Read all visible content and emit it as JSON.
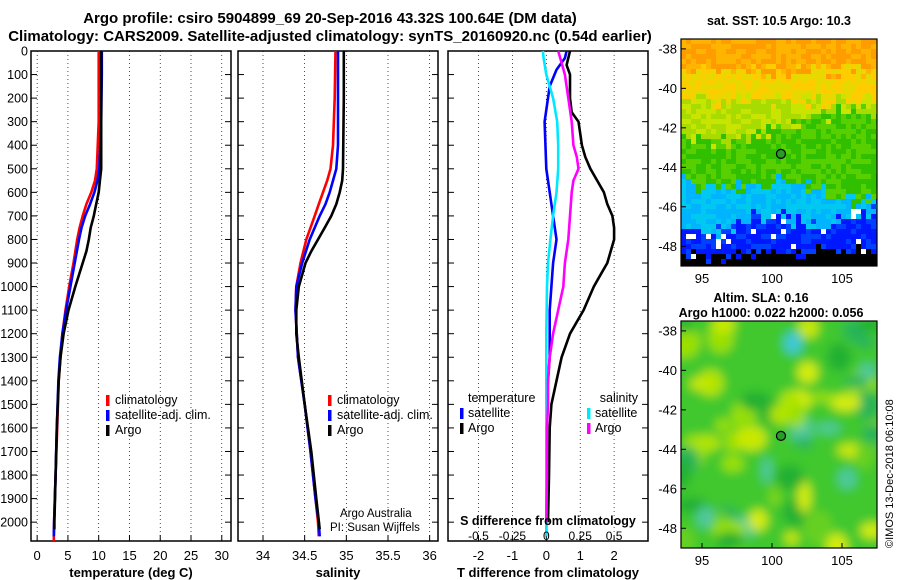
{
  "header": {
    "line1": "Argo profile: csiro 5904899_69 20-Sep-2016 43.32S 100.64E (DM data)",
    "line2": "Climatology: CARS2009. Satellite-adjusted climatology: synTS_20160920.nc (0.54d earlier)"
  },
  "colors": {
    "climatology": "#ff0000",
    "satellite": "#0000ff",
    "argo": "#000000",
    "cyan": "#00e8ff",
    "magenta": "#ff00ff"
  },
  "credits": {
    "line1": "Argo Australia",
    "line2": "PI: Susan Wijffels"
  },
  "watermark": "©IMOS 13-Dec-2018 06:10:08",
  "chart_data": [
    {
      "type": "line",
      "name": "temperature",
      "xlabel": "temperature (deg C)",
      "ylabel": "",
      "xlim": [
        -1,
        31.5
      ],
      "ylim": [
        2080,
        0
      ],
      "xticks": [
        0,
        5,
        10,
        15,
        20,
        25,
        30
      ],
      "yticks": [
        0,
        100,
        200,
        300,
        400,
        500,
        600,
        700,
        800,
        900,
        1000,
        1100,
        1200,
        1300,
        1400,
        1500,
        1600,
        1700,
        1800,
        1900,
        2000
      ],
      "legend": [
        "climatology",
        "satellite-adj. clim.",
        "Argo"
      ],
      "series": [
        {
          "name": "climatology",
          "depth": [
            0,
            100,
            300,
            500,
            550,
            600,
            650,
            700,
            750,
            800,
            900,
            1000,
            1100,
            1200,
            1300,
            1400,
            1600,
            1800,
            2000,
            2080
          ],
          "values": [
            10.0,
            10.0,
            10.0,
            9.7,
            9.4,
            8.8,
            8.0,
            7.4,
            6.9,
            6.5,
            5.9,
            5.2,
            4.6,
            4.1,
            3.8,
            3.5,
            3.25,
            3.0,
            2.75,
            2.7
          ]
        },
        {
          "name": "satellite-adj. clim.",
          "depth": [
            0,
            100,
            300,
            500,
            550,
            600,
            650,
            700,
            750,
            800,
            900,
            1000,
            1100,
            1200,
            1300,
            1400,
            1600,
            1800,
            2000,
            2060
          ],
          "values": [
            10.5,
            10.5,
            10.4,
            10.1,
            9.8,
            9.3,
            8.6,
            7.8,
            7.2,
            6.8,
            6.1,
            5.4,
            4.7,
            4.1,
            3.7,
            3.45,
            3.2,
            3.0,
            2.75,
            2.7
          ]
        },
        {
          "name": "Argo",
          "depth": [
            0,
            100,
            300,
            500,
            550,
            600,
            650,
            700,
            750,
            800,
            850,
            900,
            1000,
            1100,
            1200,
            1300,
            1400,
            1600,
            1800,
            2000,
            2030
          ],
          "values": [
            10.4,
            10.4,
            10.4,
            10.4,
            10.2,
            10.0,
            9.6,
            9.2,
            8.7,
            8.4,
            8.0,
            7.4,
            6.2,
            5.1,
            4.3,
            3.8,
            3.5,
            3.2,
            3.0,
            2.8,
            2.8
          ]
        }
      ]
    },
    {
      "type": "line",
      "name": "salinity",
      "xlabel": "salinity",
      "ylabel": "",
      "xlim": [
        33.7,
        36.1
      ],
      "ylim": [
        2080,
        0
      ],
      "xticks": [
        34,
        34.5,
        35,
        35.5,
        36
      ],
      "legend": [
        "climatology",
        "satellite-adj. clim.",
        "Argo"
      ],
      "series": [
        {
          "name": "climatology",
          "depth": [
            0,
            200,
            400,
            500,
            550,
            600,
            650,
            700,
            800,
            900,
            1000,
            1100,
            1300,
            1500,
            1700,
            1900,
            2000,
            2060
          ],
          "values": [
            34.87,
            34.86,
            34.84,
            34.81,
            34.77,
            34.72,
            34.67,
            34.62,
            34.52,
            34.45,
            34.4,
            34.39,
            34.42,
            34.5,
            34.57,
            34.63,
            34.66,
            34.67
          ]
        },
        {
          "name": "satellite-adj. clim.",
          "depth": [
            0,
            200,
            400,
            500,
            550,
            600,
            650,
            700,
            800,
            900,
            1000,
            1100,
            1300,
            1500,
            1700,
            1900,
            2000,
            2060
          ],
          "values": [
            34.9,
            34.9,
            34.9,
            34.88,
            34.84,
            34.8,
            34.75,
            34.68,
            34.56,
            34.47,
            34.4,
            34.39,
            34.42,
            34.5,
            34.57,
            34.63,
            34.67,
            34.68
          ]
        },
        {
          "name": "Argo",
          "depth": [
            0,
            200,
            500,
            550,
            600,
            650,
            700,
            750,
            800,
            850,
            900,
            1000,
            1100,
            1200,
            1300,
            1500,
            1700,
            1900,
            2030
          ],
          "values": [
            34.97,
            34.97,
            34.96,
            34.95,
            34.92,
            34.88,
            34.82,
            34.74,
            34.66,
            34.58,
            34.51,
            34.43,
            34.4,
            34.4,
            34.43,
            34.5,
            34.58,
            34.64,
            34.68
          ]
        }
      ]
    },
    {
      "type": "line",
      "name": "differences",
      "xlabel": "T difference from climatology",
      "x2label": "S difference from climatology",
      "xlim": [
        -2.9,
        3.0
      ],
      "ylim": [
        2080,
        0
      ],
      "xticks": [
        -2,
        -1,
        0,
        1,
        2
      ],
      "x2ticks": [
        {
          "label": "-0.5",
          "t": -2
        },
        {
          "label": "-0.25",
          "t": -1
        },
        {
          "label": "0",
          "t": 0
        },
        {
          "label": "0.25",
          "t": 1
        },
        {
          "label": "0.5",
          "t": 2
        }
      ],
      "legend_left": {
        "title": "temperature",
        "items": [
          "satellite",
          "Argo"
        ]
      },
      "legend_right": {
        "title": "salinity",
        "items": [
          "satellite",
          "Argo"
        ]
      },
      "series": [
        {
          "name": "T satellite",
          "color": "#0000ff",
          "depth": [
            0,
            30,
            80,
            150,
            300,
            500,
            600,
            700,
            800,
            900,
            1100,
            1300,
            1500,
            1800,
            2060
          ],
          "values": [
            0.6,
            0.55,
            0.3,
            0.1,
            -0.05,
            0.0,
            0.1,
            0.2,
            0.3,
            0.2,
            0.1,
            0.1,
            0.0,
            0.0,
            0.0
          ]
        },
        {
          "name": "T Argo",
          "color": "#000000",
          "depth": [
            0,
            30,
            60,
            100,
            200,
            260,
            300,
            400,
            450,
            500,
            550,
            600,
            650,
            700,
            750,
            800,
            850,
            900,
            950,
            1000,
            1100,
            1200,
            1300,
            1400,
            1500,
            1600,
            1800,
            2000
          ],
          "values": [
            0.7,
            0.65,
            0.6,
            0.7,
            0.7,
            0.75,
            0.95,
            1.05,
            1.15,
            1.3,
            1.5,
            1.7,
            1.8,
            1.95,
            2.0,
            2.0,
            1.9,
            1.8,
            1.6,
            1.4,
            1.1,
            0.7,
            0.45,
            0.3,
            0.15,
            0.1,
            0.08,
            0.05
          ]
        },
        {
          "name": "S satellite",
          "color": "#00e8ff",
          "depth": [
            0,
            30,
            100,
            200,
            300,
            400,
            500,
            600,
            700,
            800,
            900,
            1000,
            1200,
            1400,
            1600,
            1800,
            2060
          ],
          "values": [
            -0.1,
            -0.08,
            0.0,
            0.2,
            0.32,
            0.35,
            0.35,
            0.3,
            0.2,
            0.12,
            0.05,
            0.02,
            0.0,
            0.0,
            0.0,
            0.0,
            0.0
          ]
        },
        {
          "name": "S Argo",
          "color": "#ff00ff",
          "depth": [
            0,
            50,
            100,
            200,
            300,
            400,
            450,
            500,
            550,
            600,
            700,
            800,
            900,
            1000,
            1100,
            1200,
            1300,
            1400,
            1500,
            1600,
            1800,
            2000
          ],
          "values": [
            0.35,
            0.45,
            0.55,
            0.65,
            0.75,
            0.8,
            0.9,
            0.95,
            0.8,
            0.75,
            0.7,
            0.65,
            0.55,
            0.5,
            0.35,
            0.2,
            0.1,
            0.05,
            0.05,
            0.02,
            0.02,
            0.0
          ]
        }
      ]
    },
    {
      "type": "heatmap",
      "name": "sst-map",
      "title": "sat. SST: 10.5 Argo: 10.3",
      "xlim": [
        93.5,
        107.5
      ],
      "ylim": [
        -49,
        -37.5
      ],
      "xticks": [
        95,
        100,
        105
      ],
      "yticks": [
        -38,
        -40,
        -42,
        -44,
        -46,
        -48
      ],
      "float": {
        "lon": 100.64,
        "lat": -43.32
      }
    },
    {
      "type": "heatmap",
      "name": "sla-map",
      "title": "Altim. SLA: 0.16",
      "subtitle": "Argo h1000: 0.022 h2000: 0.056",
      "xlim": [
        93.5,
        107.5
      ],
      "ylim": [
        -49,
        -37.5
      ],
      "xticks": [
        95,
        100,
        105
      ],
      "yticks": [
        -38,
        -40,
        -42,
        -44,
        -46,
        -48
      ],
      "float": {
        "lon": 100.64,
        "lat": -43.32
      }
    }
  ]
}
